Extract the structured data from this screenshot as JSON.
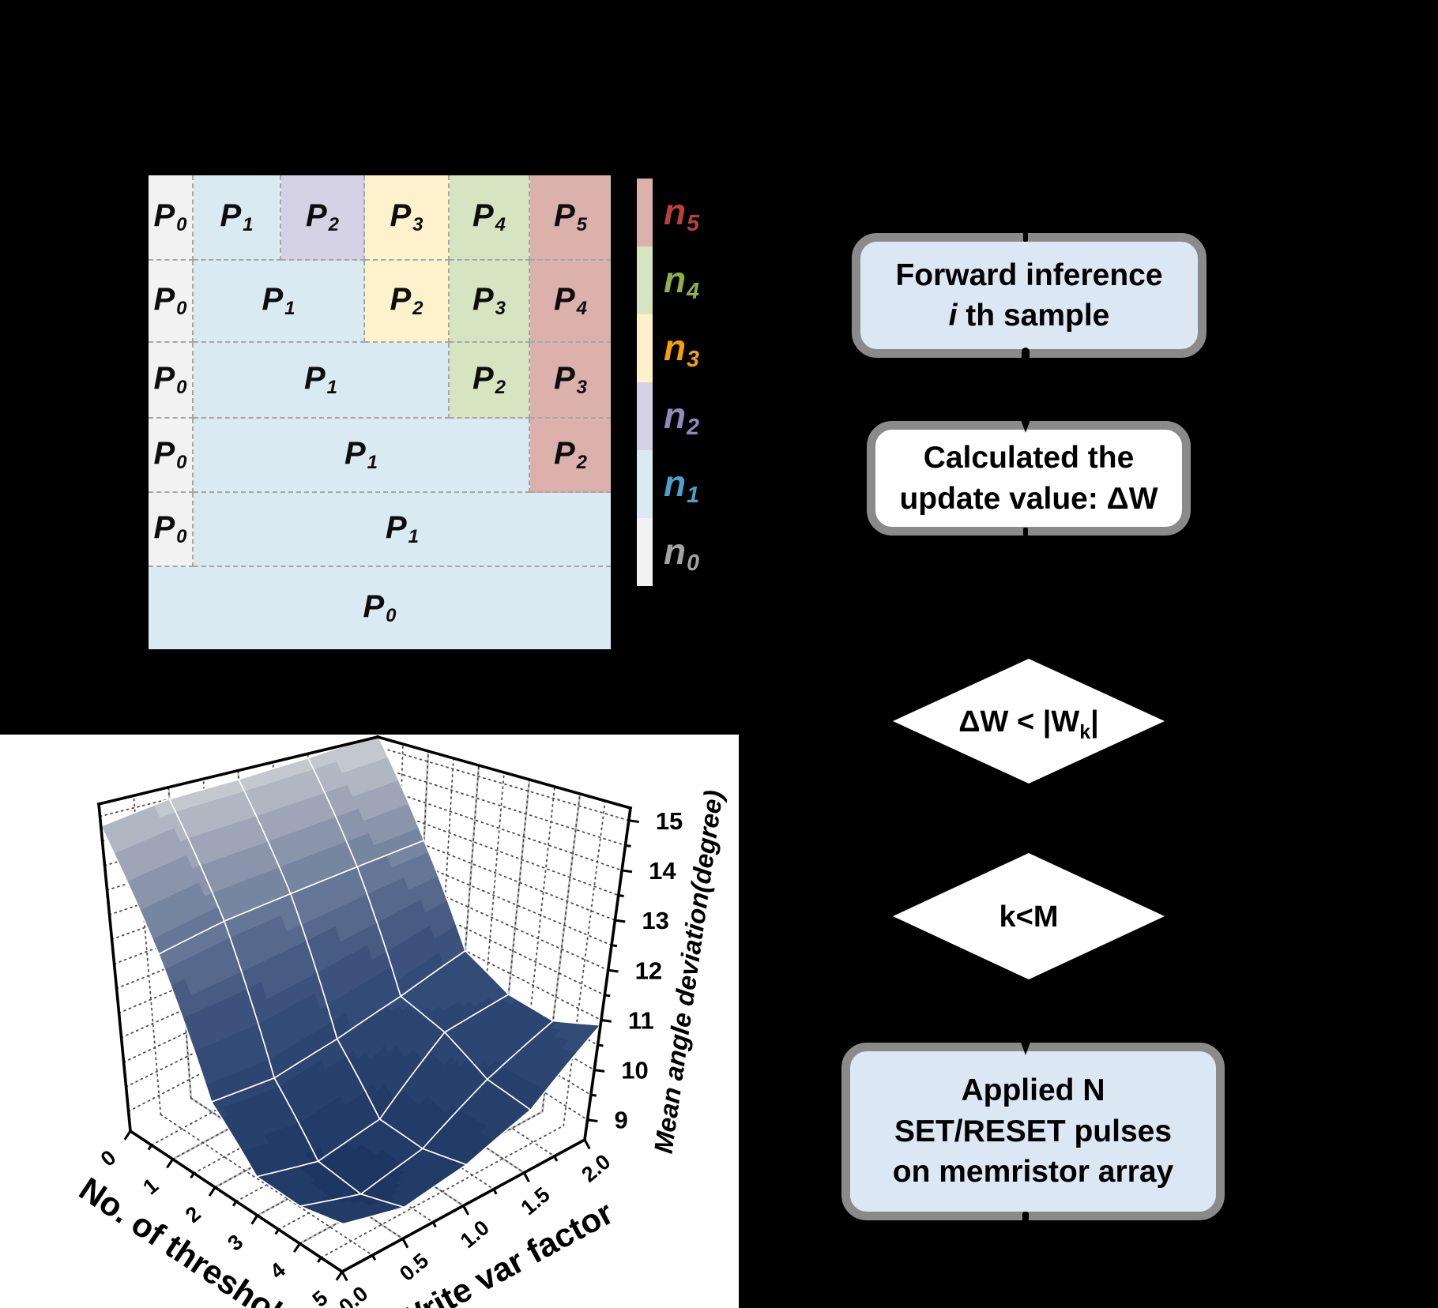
{
  "figure": {
    "background": "#000000"
  },
  "threshold_map": {
    "palette": {
      "n0": "#f2f2f2",
      "n1": "#daeaf3",
      "n2": "#d6d2e6",
      "n3": "#fdf2cc",
      "n4": "#d6e4c1",
      "n5": "#dcb1ac"
    },
    "rows": [
      {
        "cells": [
          {
            "p": "P",
            "sub": "0",
            "level": "n0",
            "span": 1
          },
          {
            "p": "P",
            "sub": "1",
            "level": "n1",
            "span": 1
          },
          {
            "p": "P",
            "sub": "2",
            "level": "n2",
            "span": 1
          },
          {
            "p": "P",
            "sub": "3",
            "level": "n3",
            "span": 1
          },
          {
            "p": "P",
            "sub": "4",
            "level": "n4",
            "span": 1
          },
          {
            "p": "P",
            "sub": "5",
            "level": "n5",
            "span": 1
          }
        ]
      },
      {
        "cells": [
          {
            "p": "P",
            "sub": "0",
            "level": "n0",
            "span": 1
          },
          {
            "p": "P",
            "sub": "1",
            "level": "n1",
            "span": 2
          },
          {
            "p": "P",
            "sub": "2",
            "level": "n3",
            "span": 1
          },
          {
            "p": "P",
            "sub": "3",
            "level": "n4",
            "span": 1
          },
          {
            "p": "P",
            "sub": "4",
            "level": "n5",
            "span": 1
          }
        ]
      },
      {
        "cells": [
          {
            "p": "P",
            "sub": "0",
            "level": "n0",
            "span": 1
          },
          {
            "p": "P",
            "sub": "1",
            "level": "n1",
            "span": 3
          },
          {
            "p": "P",
            "sub": "2",
            "level": "n4",
            "span": 1
          },
          {
            "p": "P",
            "sub": "3",
            "level": "n5",
            "span": 1
          }
        ]
      },
      {
        "cells": [
          {
            "p": "P",
            "sub": "0",
            "level": "n0",
            "span": 1
          },
          {
            "p": "P",
            "sub": "1",
            "level": "n1",
            "span": 4
          },
          {
            "p": "P",
            "sub": "2",
            "level": "n5",
            "span": 1
          }
        ]
      },
      {
        "cells": [
          {
            "p": "P",
            "sub": "0",
            "level": "n0",
            "span": 1
          },
          {
            "p": "P",
            "sub": "1",
            "level": "n1",
            "span": 5
          }
        ]
      },
      {
        "cells": [
          {
            "p": "P",
            "sub": "0",
            "level": "n1",
            "span": 6
          }
        ]
      }
    ],
    "legend": [
      {
        "label": "n",
        "sub": "5",
        "text_color": "#b8413c",
        "swatch": "#dcb1ac"
      },
      {
        "label": "n",
        "sub": "4",
        "text_color": "#8fae4e",
        "swatch": "#d6e4c1"
      },
      {
        "label": "n",
        "sub": "3",
        "text_color": "#f2a202",
        "swatch": "#fdf2cc"
      },
      {
        "label": "n",
        "sub": "2",
        "text_color": "#9487bd",
        "swatch": "#d6d2e6"
      },
      {
        "label": "n",
        "sub": "1",
        "text_color": "#4e9fc9",
        "swatch": "#daeaf3"
      },
      {
        "label": "n",
        "sub": "0",
        "text_color": "#a3a3a3",
        "swatch": "#f2f2f2"
      }
    ]
  },
  "flowchart": {
    "box_fill": "#dce7f4",
    "box_fill_white": "#ffffff",
    "border_color": "#8a8a8a",
    "nodes": [
      {
        "id": "forward",
        "type": "box",
        "fill": "blue",
        "lines": [
          [
            {
              "t": "Forward inference"
            }
          ],
          [
            {
              "t": "i",
              "italic": true
            },
            {
              "t": " th sample"
            }
          ]
        ]
      },
      {
        "id": "calc",
        "type": "box",
        "fill": "white",
        "lines": [
          [
            {
              "t": "Calculated the"
            }
          ],
          [
            {
              "t": "update value: ΔW"
            }
          ]
        ]
      },
      {
        "id": "cond-dw",
        "type": "diamond",
        "text_pre": "ΔW < |W",
        "text_sub": "k",
        "text_post": "|"
      },
      {
        "id": "cond-km",
        "type": "diamond",
        "text_pre": "k<M",
        "text_sub": "",
        "text_post": ""
      },
      {
        "id": "apply",
        "type": "box",
        "fill": "blue",
        "lines": [
          [
            {
              "t": "Applied N"
            }
          ],
          [
            {
              "t": "SET/RESET pulses"
            }
          ],
          [
            {
              "t": "on memristor array"
            }
          ]
        ]
      }
    ]
  },
  "chart_data": {
    "type": "surface3d",
    "title": "",
    "xlabel": "No. of thresholds",
    "ylabel": "Write var factor",
    "zlabel": "Mean angle deviation(degree)",
    "x_ticks": [
      "0",
      "1",
      "2",
      "3",
      "4",
      "5"
    ],
    "y_ticks": [
      "0.0",
      "0.5",
      "1.0",
      "1.5",
      "2.0"
    ],
    "z_ticks": [
      "9",
      "10",
      "11",
      "12",
      "13",
      "14",
      "15"
    ],
    "x": [
      0,
      1,
      2,
      3,
      4,
      5
    ],
    "y": [
      0,
      0.5,
      1,
      1.5,
      2
    ],
    "zlim": [
      8.6,
      15.25
    ],
    "z": [
      [
        14.8,
        15.0,
        15.05,
        15.15,
        15.3
      ],
      [
        12.6,
        12.8,
        12.9,
        13.0,
        13.1
      ],
      [
        10.2,
        10.1,
        10.3,
        10.6,
        11.0
      ],
      [
        9.3,
        9.0,
        9.2,
        10.35,
        10.55
      ],
      [
        9.25,
        8.9,
        9.15,
        9.9,
        10.5
      ],
      [
        9.4,
        9.15,
        9.35,
        9.8,
        10.9
      ]
    ],
    "grid": true,
    "colormap": [
      [
        8.6,
        "#1c355f"
      ],
      [
        9.6,
        "#253f6a"
      ],
      [
        10.6,
        "#2f4a75"
      ],
      [
        11.4,
        "#3f547e"
      ],
      [
        12.1,
        "#53658a"
      ],
      [
        12.9,
        "#6c7c9b"
      ],
      [
        13.6,
        "#8893a9"
      ],
      [
        14.3,
        "#a4abbb"
      ],
      [
        14.9,
        "#bdc1ca"
      ],
      [
        15.35,
        "#cdcfd5"
      ]
    ],
    "mesh_color": "#ffffff",
    "surface_low_color": "#1c355f",
    "surface_high_color": "#cdcfd5"
  }
}
